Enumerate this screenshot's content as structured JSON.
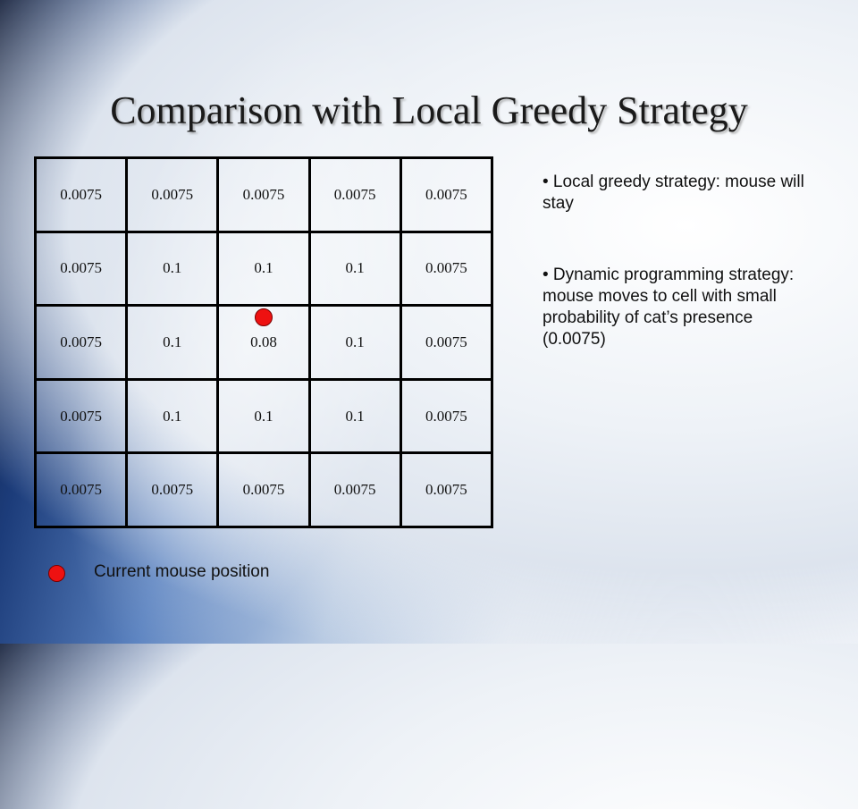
{
  "slide": {
    "title": "Comparison with Local Greedy Strategy"
  },
  "grid": {
    "rows": [
      [
        "0.0075",
        "0.0075",
        "0.0075",
        "0.0075",
        "0.0075"
      ],
      [
        "0.0075",
        "0.1",
        "0.1",
        "0.1",
        "0.0075"
      ],
      [
        "0.0075",
        "0.1",
        "0.08",
        "0.1",
        "0.0075"
      ],
      [
        "0.0075",
        "0.1",
        "0.1",
        "0.1",
        "0.0075"
      ],
      [
        "0.0075",
        "0.0075",
        "0.0075",
        "0.0075",
        "0.0075"
      ]
    ],
    "mouse_cell": {
      "row": 3,
      "col": 3
    }
  },
  "bullets": [
    "• Local greedy strategy: mouse will stay",
    "• Dynamic programming strategy: mouse moves to cell with small probability of cat’s presence (0.0075)"
  ],
  "legend": {
    "label": "Current mouse position",
    "marker_color": "#ee1111"
  },
  "colors": {
    "grid_border": "#000000",
    "mouse_marker": "#ee1111"
  }
}
